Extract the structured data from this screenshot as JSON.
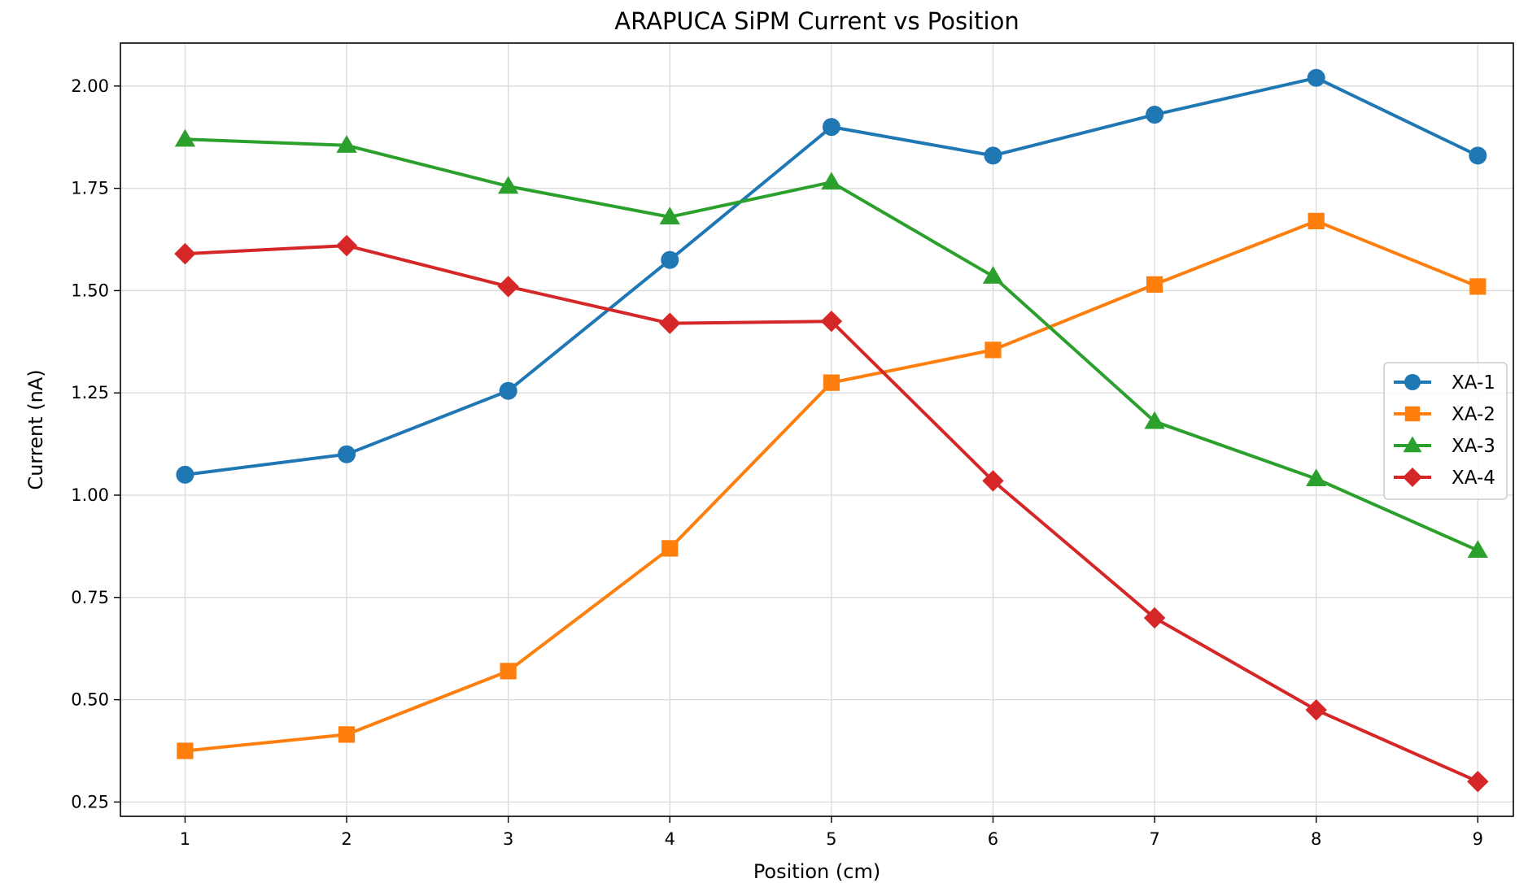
{
  "chart_data": {
    "type": "line",
    "title": "ARAPUCA SiPM Current vs Position",
    "xlabel": "Position (cm)",
    "ylabel": "Current (nA)",
    "x": [
      1,
      2,
      3,
      4,
      5,
      6,
      7,
      8,
      9
    ],
    "xticks": [
      "1",
      "2",
      "3",
      "4",
      "5",
      "6",
      "7",
      "8",
      "9"
    ],
    "yticks": [
      "0.25",
      "0.50",
      "0.75",
      "1.00",
      "1.25",
      "1.50",
      "1.75",
      "2.00"
    ],
    "xlim": [
      0.6,
      9.22
    ],
    "ylim": [
      0.215,
      2.105
    ],
    "grid": true,
    "legend_position": "center-right",
    "series": [
      {
        "name": "XA-1",
        "color": "#1f77b4",
        "marker": "circle",
        "values": [
          1.05,
          1.1,
          1.255,
          1.575,
          1.9,
          1.83,
          1.93,
          2.02,
          1.83
        ]
      },
      {
        "name": "XA-2",
        "color": "#ff7f0e",
        "marker": "square",
        "values": [
          0.375,
          0.415,
          0.57,
          0.87,
          1.275,
          1.355,
          1.515,
          1.67,
          1.51
        ]
      },
      {
        "name": "XA-3",
        "color": "#2ca02c",
        "marker": "triangle",
        "values": [
          1.87,
          1.855,
          1.755,
          1.68,
          1.765,
          1.535,
          1.18,
          1.04,
          0.865
        ]
      },
      {
        "name": "XA-4",
        "color": "#d62728",
        "marker": "diamond",
        "values": [
          1.59,
          1.61,
          1.51,
          1.42,
          1.425,
          1.035,
          0.7,
          0.475,
          0.3
        ]
      }
    ]
  }
}
